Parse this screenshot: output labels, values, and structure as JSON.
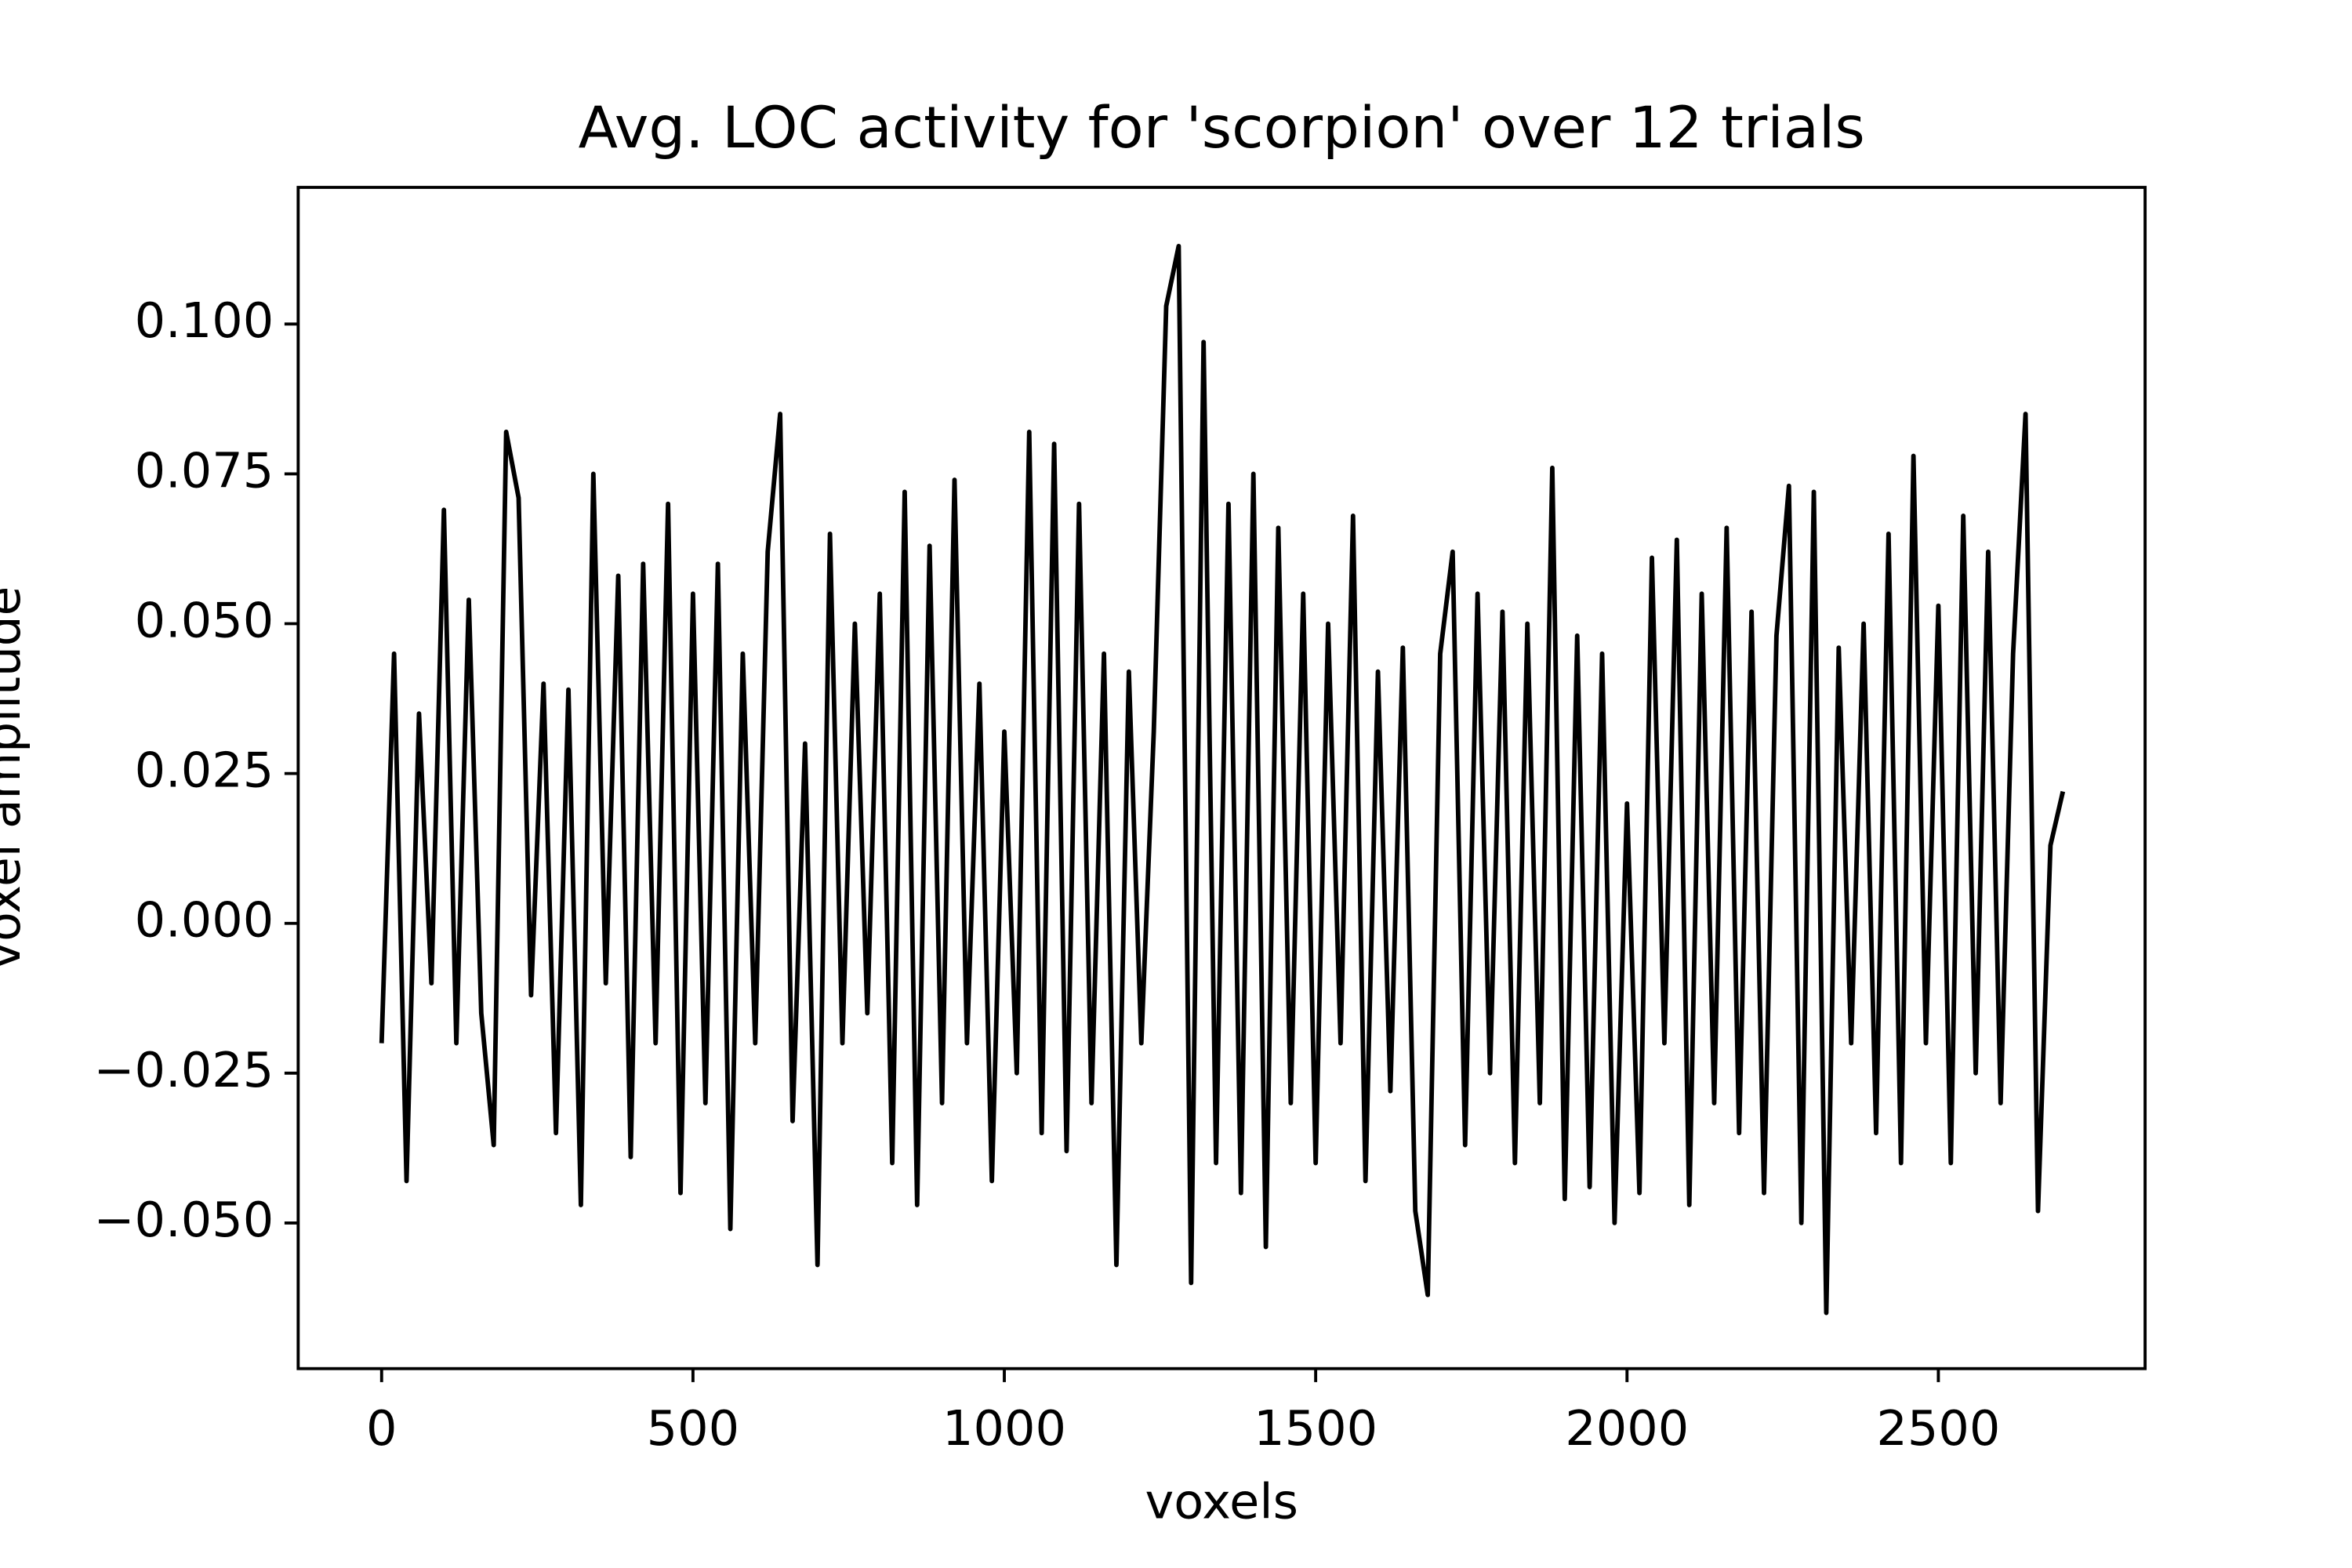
{
  "chart_data": {
    "type": "line",
    "title": "Avg. LOC activity for 'scorpion' over 12 trials",
    "xlabel": "voxels",
    "ylabel": "voxel amplitude",
    "x": [
      0,
      20,
      40,
      60,
      80,
      100,
      120,
      140,
      160,
      180,
      200,
      220,
      240,
      260,
      280,
      300,
      320,
      340,
      360,
      380,
      400,
      420,
      440,
      460,
      480,
      500,
      520,
      540,
      560,
      580,
      600,
      620,
      640,
      660,
      680,
      700,
      720,
      740,
      760,
      780,
      800,
      820,
      840,
      860,
      880,
      900,
      920,
      940,
      960,
      980,
      1000,
      1020,
      1040,
      1060,
      1080,
      1100,
      1120,
      1140,
      1160,
      1180,
      1200,
      1220,
      1240,
      1260,
      1280,
      1300,
      1320,
      1340,
      1360,
      1380,
      1400,
      1420,
      1440,
      1460,
      1480,
      1500,
      1520,
      1540,
      1560,
      1580,
      1600,
      1620,
      1640,
      1660,
      1680,
      1700,
      1720,
      1740,
      1760,
      1780,
      1800,
      1820,
      1840,
      1860,
      1880,
      1900,
      1920,
      1940,
      1960,
      1980,
      2000,
      2020,
      2040,
      2060,
      2080,
      2100,
      2120,
      2140,
      2160,
      2180,
      2200,
      2220,
      2240,
      2260,
      2280,
      2300,
      2320,
      2340,
      2360,
      2380,
      2400,
      2420,
      2440,
      2460,
      2480,
      2500,
      2520,
      2540,
      2560,
      2580,
      2600,
      2620,
      2640,
      2660,
      2680,
      2700
    ],
    "series": [
      {
        "color": "#000000",
        "values": [
          -0.02,
          0.045,
          -0.043,
          0.035,
          -0.01,
          0.069,
          -0.02,
          0.054,
          -0.015,
          -0.037,
          0.082,
          0.071,
          -0.012,
          0.04,
          -0.035,
          0.039,
          -0.047,
          0.075,
          -0.01,
          0.058,
          -0.039,
          0.06,
          -0.02,
          0.07,
          -0.045,
          0.055,
          -0.03,
          0.06,
          -0.051,
          0.045,
          -0.02,
          0.062,
          0.085,
          -0.033,
          0.03,
          -0.057,
          0.065,
          -0.02,
          0.05,
          -0.015,
          0.055,
          -0.04,
          0.072,
          -0.047,
          0.063,
          -0.03,
          0.074,
          -0.02,
          0.04,
          -0.043,
          0.032,
          -0.025,
          0.082,
          -0.035,
          0.08,
          -0.038,
          0.07,
          -0.03,
          0.045,
          -0.057,
          0.042,
          -0.02,
          0.032,
          0.103,
          0.113,
          -0.06,
          0.097,
          -0.04,
          0.07,
          -0.045,
          0.075,
          -0.054,
          0.066,
          -0.03,
          0.055,
          -0.04,
          0.05,
          -0.02,
          0.068,
          -0.043,
          0.042,
          -0.028,
          0.046,
          -0.048,
          -0.062,
          0.045,
          0.062,
          -0.037,
          0.055,
          -0.025,
          0.052,
          -0.04,
          0.05,
          -0.03,
          0.076,
          -0.046,
          0.048,
          -0.044,
          0.045,
          -0.05,
          0.02,
          -0.045,
          0.061,
          -0.02,
          0.064,
          -0.047,
          0.055,
          -0.03,
          0.066,
          -0.035,
          0.052,
          -0.045,
          0.048,
          0.073,
          -0.05,
          0.072,
          -0.065,
          0.046,
          -0.02,
          0.05,
          -0.035,
          0.065,
          -0.04,
          0.078,
          -0.02,
          0.053,
          -0.04,
          0.068,
          -0.025,
          0.062,
          -0.03,
          0.045,
          0.085,
          -0.048,
          0.013,
          0.022
        ]
      }
    ],
    "xlim": [
      -134,
      2832
    ],
    "ylim": [
      -0.0743,
      0.1228
    ],
    "xticks": [
      0,
      500,
      1000,
      1500,
      2000,
      2500
    ],
    "yticks": [
      {
        "value": -0.05,
        "label": "−0.050"
      },
      {
        "value": -0.025,
        "label": "−0.025"
      },
      {
        "value": 0,
        "label": "0.000"
      },
      {
        "value": 0.025,
        "label": "0.025"
      },
      {
        "value": 0.05,
        "label": "0.050"
      },
      {
        "value": 0.075,
        "label": "0.075"
      },
      {
        "value": 0.1,
        "label": "0.100"
      }
    ],
    "grid": false
  }
}
